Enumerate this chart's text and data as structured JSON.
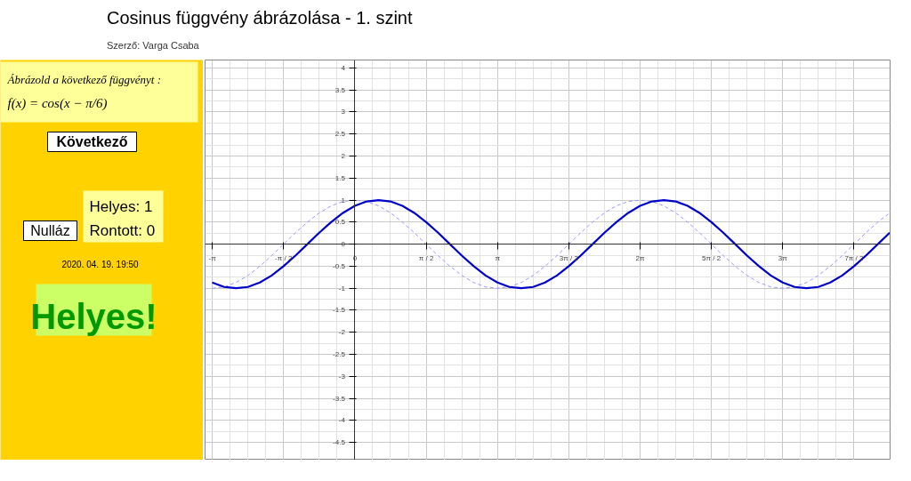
{
  "chart_data": [
    {
      "type": "other",
      "annotations": [
        "Ábrázold a következő függvényt :",
        "f(x) = cos(x − π/6)",
        "Következő",
        "Helyes: 1",
        "Rontott: 0",
        "Nulláz",
        "2020. 04. 19. 19:50",
        "Helyes!"
      ]
    },
    {
      "type": "line",
      "title": "Cosinus függvény ábrázolása - 1. szint",
      "subtitle": "Szerző: Varga Csaba",
      "x": [
        -3.142,
        -2.88,
        -2.618,
        -2.356,
        -2.094,
        -1.833,
        -1.571,
        -1.309,
        -1.047,
        -0.785,
        -0.524,
        -0.262,
        0,
        0.262,
        0.524,
        0.785,
        1.047,
        1.309,
        1.571,
        1.833,
        2.094,
        2.356,
        2.618,
        2.88,
        3.142,
        3.403,
        3.665,
        3.927,
        4.189,
        4.451,
        4.712,
        4.974,
        5.236,
        5.498,
        5.76,
        6.021,
        6.283,
        6.545,
        6.807,
        7.069,
        7.33,
        7.592,
        7.854,
        8.116,
        8.378,
        8.639,
        8.901,
        9.163,
        9.425,
        9.687,
        9.948,
        10.21,
        10.472,
        10.734,
        10.996,
        11.257,
        11.519,
        11.781
      ],
      "series": [
        {
          "color": "#9999ff",
          "line_style": "dashed",
          "values": [
            -1,
            -0.97,
            -0.87,
            -0.71,
            -0.5,
            -0.26,
            0,
            0.26,
            0.5,
            0.71,
            0.87,
            0.97,
            1,
            0.97,
            0.87,
            0.71,
            0.5,
            0.26,
            0,
            -0.26,
            -0.5,
            -0.71,
            -0.87,
            -0.97,
            -1,
            -0.97,
            -0.87,
            -0.71,
            -0.5,
            -0.26,
            0,
            0.26,
            0.5,
            0.71,
            0.87,
            0.97,
            1,
            0.97,
            0.87,
            0.71,
            0.5,
            0.26,
            0,
            -0.26,
            -0.5,
            -0.71,
            -0.87,
            -0.97,
            -1,
            -0.97,
            -0.87,
            -0.71,
            -0.5,
            -0.26,
            0,
            0.26,
            0.5,
            0.71
          ]
        },
        {
          "color": "#0000cc",
          "line_style": "solid",
          "values": [
            -0.87,
            -0.97,
            -1,
            -0.97,
            -0.87,
            -0.71,
            -0.5,
            -0.26,
            0,
            0.26,
            0.5,
            0.71,
            0.87,
            0.97,
            1,
            0.97,
            0.87,
            0.71,
            0.5,
            0.26,
            0,
            -0.26,
            -0.5,
            -0.71,
            -0.87,
            -0.97,
            -1,
            -0.97,
            -0.87,
            -0.71,
            -0.5,
            -0.26,
            0,
            0.26,
            0.5,
            0.71,
            0.87,
            0.97,
            1,
            0.97,
            0.87,
            0.71,
            0.5,
            0.26,
            0,
            -0.26,
            -0.5,
            -0.71,
            -0.87,
            -0.97,
            -1,
            -0.97,
            -0.87,
            -0.71,
            -0.5,
            -0.26,
            0,
            0.26
          ]
        }
      ],
      "xlim": [
        -3.3,
        11.79
      ],
      "ylim": [
        -4.9,
        4.18
      ],
      "xticks": [
        {
          "value": -3.1416,
          "label": "-π"
        },
        {
          "value": -1.5708,
          "label": "-π / 2"
        },
        0,
        {
          "value": 1.5708,
          "label": "π / 2"
        },
        {
          "value": 3.1416,
          "label": "π"
        },
        {
          "value": 4.7124,
          "label": "3π / 2"
        },
        {
          "value": 6.2832,
          "label": "2π"
        },
        {
          "value": 7.854,
          "label": "5π / 2"
        },
        {
          "value": 9.4248,
          "label": "3π"
        },
        {
          "value": 10.9956,
          "label": "7π / 2"
        }
      ],
      "yticks": [
        -4.5,
        -4,
        -3.5,
        -3,
        -2.5,
        -2,
        -1.5,
        -1,
        -0.5,
        0,
        0.5,
        1,
        1.5,
        2,
        2.5,
        3,
        3.5,
        4
      ],
      "grid": true
    }
  ]
}
